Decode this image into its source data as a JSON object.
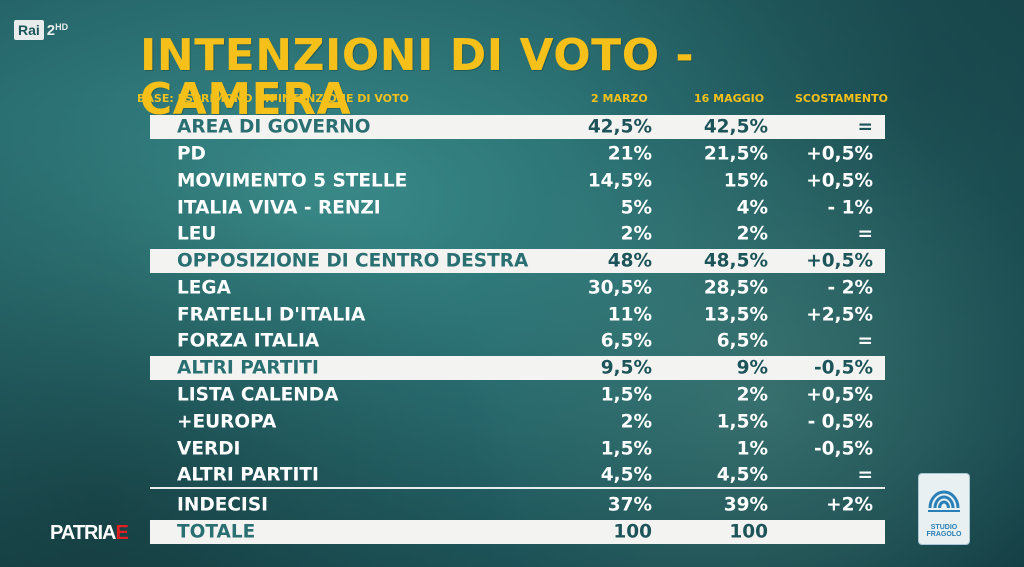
{
  "channel": {
    "rai": "Rai",
    "number": "2",
    "hd": "HD"
  },
  "title": "INTENZIONI DI VOTO - CAMERA",
  "header": {
    "base": "BASE: ESPRIMONO UN'INTENZIONE DI VOTO",
    "col1": "2 MARZO",
    "col2": "16 MAGGIO",
    "col3": "SCOSTAMENTO"
  },
  "rows": [
    {
      "label": "AREA DI GOVERNO",
      "v1": "42,5%",
      "v2": "42,5%",
      "v3": "="
    },
    {
      "label": "PD",
      "v1": "21%",
      "v2": "21,5%",
      "v3": "+0,5%"
    },
    {
      "label": "MOVIMENTO 5 STELLE",
      "v1": "14,5%",
      "v2": "15%",
      "v3": "+0,5%"
    },
    {
      "label": "ITALIA VIVA - RENZI",
      "v1": "5%",
      "v2": "4%",
      "v3": "- 1%"
    },
    {
      "label": "LEU",
      "v1": "2%",
      "v2": "2%",
      "v3": "="
    },
    {
      "label": "OPPOSIZIONE DI CENTRO DESTRA",
      "v1": "48%",
      "v2": "48,5%",
      "v3": "+0,5%"
    },
    {
      "label": "LEGA",
      "v1": "30,5%",
      "v2": "28,5%",
      "v3": "- 2%"
    },
    {
      "label": "FRATELLI D'ITALIA",
      "v1": "11%",
      "v2": "13,5%",
      "v3": "+2,5%"
    },
    {
      "label": "FORZA ITALIA",
      "v1": "6,5%",
      "v2": "6,5%",
      "v3": "="
    },
    {
      "label": "ALTRI PARTITI",
      "v1": "9,5%",
      "v2": "9%",
      "v3": "-0,5%"
    },
    {
      "label": "LISTA CALENDA",
      "v1": "1,5%",
      "v2": "2%",
      "v3": "+0,5%"
    },
    {
      "label": "+EUROPA",
      "v1": "2%",
      "v2": "1,5%",
      "v3": "- 0,5%"
    },
    {
      "label": "VERDI",
      "v1": "1,5%",
      "v2": "1%",
      "v3": "-0,5%"
    },
    {
      "label": "ALTRI PARTITI",
      "v1": "4,5%",
      "v2": "4,5%",
      "v3": "="
    }
  ],
  "indecisi": {
    "label": "INDECISI",
    "v1": "37%",
    "v2": "39%",
    "v3": "+2%"
  },
  "totale": {
    "label": "TOTALE",
    "v1": "100",
    "v2": "100",
    "v3": ""
  },
  "program": {
    "main": "PATRIA",
    "accent": "E"
  },
  "pollster": {
    "line1": "STUDIO",
    "line2": "FRAGOLO"
  },
  "colors": {
    "accent_yellow": "#f4c019",
    "highlight_bg": "#f3f4f2",
    "highlight_text": "#2a6f72"
  }
}
